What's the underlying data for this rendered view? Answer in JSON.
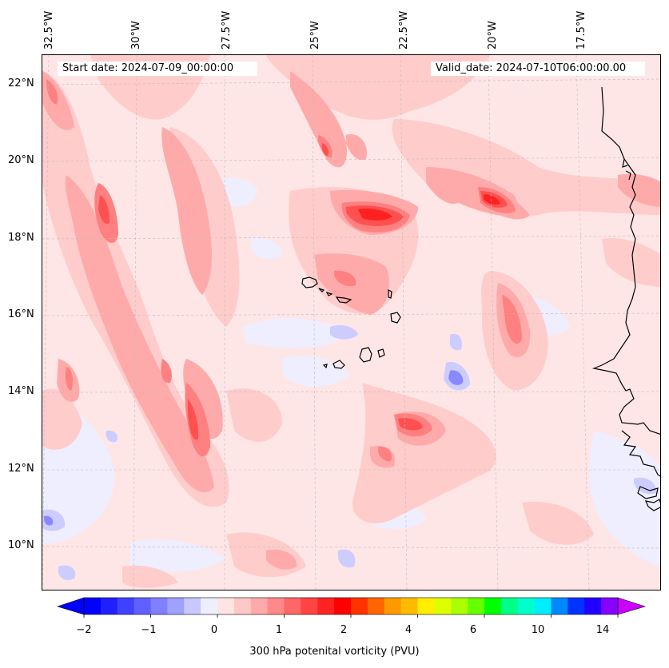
{
  "header": {
    "start_date": "Start date: 2024-07-09_00:00:00",
    "valid_date": "Valid_date: 2024-07-10T06:00:00.00"
  },
  "map": {
    "longitude_labels": [
      "32.5°W",
      "30°W",
      "27.5°W",
      "25°W",
      "22.5°W",
      "20°W",
      "17.5°W"
    ],
    "latitude_labels": [
      "22°N",
      "20°N",
      "18°N",
      "16°N",
      "14°N",
      "12°N",
      "10°N"
    ],
    "field": "300 hPa potential vorticity",
    "colors": {
      "background": "#ffe6e6",
      "light_pink": "#ffcccc",
      "pink": "#ffaaaa",
      "salmon": "#ff8080",
      "red": "#ff5050",
      "deep_red": "#ff2020",
      "light_blue": "#eeeeff",
      "blue": "#ccccff",
      "mid_blue": "#8888ff",
      "coast": "#000000"
    }
  },
  "colorbar": {
    "title": "300 hPa potenital vorticity (PVU)",
    "tick_labels": [
      "−2",
      "−1",
      "0",
      "1",
      "2",
      "4",
      "6",
      "10",
      "14"
    ],
    "colors": [
      "#0000ff",
      "#2020ff",
      "#4040ff",
      "#6060ff",
      "#8080ff",
      "#a0a0ff",
      "#c8c8ff",
      "#eeeeff",
      "#ffe4e4",
      "#ffc8c8",
      "#ffaaaa",
      "#ff8888",
      "#ff6666",
      "#ff4444",
      "#ff2222",
      "#ff0000",
      "#ff3300",
      "#ff6600",
      "#ff9900",
      "#ffbb00",
      "#ffee00",
      "#ddff00",
      "#aaff00",
      "#66ff00",
      "#00ff00",
      "#00ff88",
      "#00ffcc",
      "#00eeff",
      "#0088ff",
      "#0033ff",
      "#2200ff",
      "#8800ff"
    ],
    "extend_min_color": "#0000ff",
    "extend_max_color": "#cc00ff"
  }
}
